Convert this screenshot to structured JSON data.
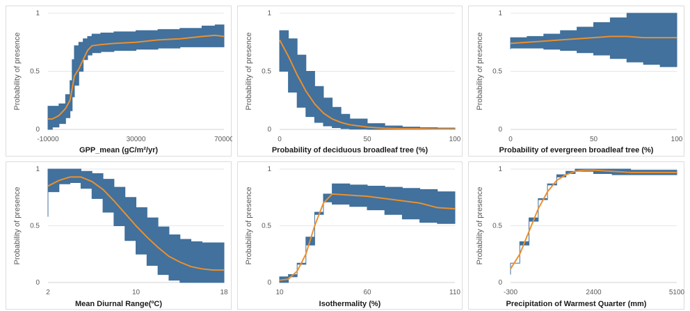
{
  "colors": {
    "band": "#41719c",
    "line": "#ed8f2d",
    "axis": "#d0d0d0",
    "grid": "#e6e6e6",
    "text": "#595959"
  },
  "y_axis_label": "Probability of presence",
  "chart_data": [
    {
      "type": "area",
      "title": "",
      "xlabel": "GPP_mean (gC/m²/yr)",
      "ylabel": "Probability of presence",
      "xlim": [
        -10000,
        70000
      ],
      "ylim": [
        0,
        1
      ],
      "x_ticks": [
        "-10000",
        "30000",
        "70000"
      ],
      "x_tick_values": [
        -10000,
        30000,
        70000
      ],
      "y_ticks": [
        "0",
        "0.5",
        "1"
      ],
      "x": [
        -10000,
        -8000,
        -5000,
        -2000,
        0,
        1000,
        2000,
        4000,
        6000,
        8000,
        10000,
        14000,
        20000,
        30000,
        40000,
        50000,
        60000,
        66000,
        70000
      ],
      "mean": [
        0.09,
        0.09,
        0.12,
        0.18,
        0.25,
        0.35,
        0.46,
        0.52,
        0.6,
        0.68,
        0.72,
        0.73,
        0.74,
        0.75,
        0.77,
        0.78,
        0.8,
        0.81,
        0.8
      ],
      "lower": [
        0,
        0,
        0.02,
        0.05,
        0.1,
        0.16,
        0.28,
        0.38,
        0.5,
        0.6,
        0.64,
        0.66,
        0.67,
        0.68,
        0.69,
        0.7,
        0.71,
        0.71,
        0.71
      ],
      "upper": [
        0.2,
        0.2,
        0.22,
        0.3,
        0.42,
        0.6,
        0.72,
        0.75,
        0.78,
        0.8,
        0.82,
        0.83,
        0.84,
        0.85,
        0.86,
        0.87,
        0.89,
        0.9,
        0.9
      ]
    },
    {
      "type": "area",
      "title": "",
      "xlabel": "Probability of deciduous broadleaf tree (%)",
      "ylabel": "Probability of presence",
      "xlim": [
        0,
        100
      ],
      "ylim": [
        0,
        1
      ],
      "x_ticks": [
        "0",
        "50",
        "100"
      ],
      "x_tick_values": [
        0,
        50,
        100
      ],
      "y_ticks": [
        "0",
        "0.5",
        "1"
      ],
      "x": [
        0,
        5,
        10,
        15,
        20,
        25,
        30,
        35,
        40,
        50,
        60,
        70,
        80,
        90,
        100
      ],
      "mean": [
        0.77,
        0.63,
        0.47,
        0.33,
        0.22,
        0.14,
        0.09,
        0.06,
        0.04,
        0.02,
        0.01,
        0.005,
        0.005,
        0.003,
        0.003
      ],
      "lower": [
        0.7,
        0.5,
        0.32,
        0.19,
        0.11,
        0.06,
        0.03,
        0.015,
        0.007,
        0.002,
        0.0,
        0.0,
        0.0,
        0.0,
        0.0
      ],
      "upper": [
        0.85,
        0.78,
        0.64,
        0.5,
        0.37,
        0.27,
        0.19,
        0.13,
        0.09,
        0.05,
        0.03,
        0.02,
        0.015,
        0.012,
        0.01
      ]
    },
    {
      "type": "area",
      "title": "",
      "xlabel": "Probability of evergreen broadleaf tree (%)",
      "ylabel": "Probability of presence",
      "xlim": [
        0,
        100
      ],
      "ylim": [
        0,
        1
      ],
      "x_ticks": [
        "0",
        "50",
        "100"
      ],
      "x_tick_values": [
        0,
        50,
        100
      ],
      "y_ticks": [
        "0",
        "0.5",
        "1"
      ],
      "x": [
        0,
        10,
        20,
        30,
        40,
        50,
        60,
        70,
        80,
        90,
        100
      ],
      "mean": [
        0.74,
        0.75,
        0.76,
        0.77,
        0.78,
        0.79,
        0.8,
        0.8,
        0.79,
        0.79,
        0.79
      ],
      "lower": [
        0.69,
        0.7,
        0.7,
        0.69,
        0.68,
        0.66,
        0.64,
        0.61,
        0.58,
        0.56,
        0.54
      ],
      "upper": [
        0.79,
        0.8,
        0.82,
        0.85,
        0.88,
        0.92,
        0.96,
        1.0,
        1.0,
        1.0,
        1.0
      ]
    },
    {
      "type": "area",
      "title": "",
      "xlabel": "Mean Diurnal Range(ºC)",
      "ylabel": "Probability of presence",
      "xlim": [
        2,
        18
      ],
      "ylim": [
        0,
        1
      ],
      "x_ticks": [
        "2",
        "10",
        "18"
      ],
      "x_tick_values": [
        2,
        10,
        18
      ],
      "y_ticks": [
        "0",
        "0.5",
        "1"
      ],
      "x": [
        2,
        3,
        4,
        5,
        6,
        7,
        8,
        9,
        10,
        11,
        12,
        13,
        14,
        15,
        16,
        17,
        18
      ],
      "mean": [
        0.85,
        0.9,
        0.93,
        0.93,
        0.89,
        0.82,
        0.72,
        0.61,
        0.5,
        0.4,
        0.31,
        0.23,
        0.18,
        0.14,
        0.12,
        0.11,
        0.11
      ],
      "lower": [
        0.58,
        0.8,
        0.87,
        0.88,
        0.83,
        0.74,
        0.62,
        0.5,
        0.37,
        0.25,
        0.15,
        0.07,
        0.02,
        0.0,
        0.0,
        0.0,
        0.0
      ],
      "upper": [
        1.0,
        1.0,
        1.0,
        0.98,
        0.96,
        0.91,
        0.84,
        0.75,
        0.66,
        0.57,
        0.49,
        0.42,
        0.38,
        0.36,
        0.35,
        0.35,
        0.35
      ]
    },
    {
      "type": "area",
      "title": "",
      "xlabel": "Isothermality (%)",
      "ylabel": "Probability of presence",
      "xlim": [
        10,
        110
      ],
      "ylim": [
        0,
        1
      ],
      "x_ticks": [
        "10",
        "60",
        "110"
      ],
      "x_tick_values": [
        10,
        60,
        110
      ],
      "y_ticks": [
        "0",
        "0.5",
        "1"
      ],
      "x": [
        10,
        15,
        20,
        25,
        30,
        35,
        40,
        50,
        60,
        70,
        80,
        90,
        100,
        110
      ],
      "mean": [
        0.02,
        0.03,
        0.1,
        0.25,
        0.5,
        0.7,
        0.78,
        0.77,
        0.76,
        0.74,
        0.72,
        0.7,
        0.66,
        0.65
      ],
      "lower": [
        0.0,
        0.0,
        0.05,
        0.17,
        0.4,
        0.62,
        0.71,
        0.69,
        0.67,
        0.64,
        0.6,
        0.56,
        0.53,
        0.52
      ],
      "upper": [
        0.05,
        0.07,
        0.16,
        0.33,
        0.6,
        0.78,
        0.87,
        0.86,
        0.85,
        0.84,
        0.83,
        0.82,
        0.8,
        0.8
      ]
    },
    {
      "type": "area",
      "title": "",
      "xlabel": "Precipitation of Warmest Quarter (mm)",
      "ylabel": "Probability of presence",
      "xlim": [
        -300,
        5100
      ],
      "ylim": [
        0,
        1
      ],
      "x_ticks": [
        "-300",
        "2400",
        "5100"
      ],
      "x_tick_values": [
        -300,
        2400,
        5100
      ],
      "y_ticks": [
        "0",
        "0.5",
        "1"
      ],
      "x": [
        -300,
        0,
        300,
        600,
        900,
        1200,
        1500,
        1800,
        2100,
        2400,
        3000,
        3600,
        4200,
        4800,
        5100
      ],
      "mean": [
        0.12,
        0.25,
        0.45,
        0.65,
        0.8,
        0.9,
        0.95,
        0.98,
        0.99,
        0.99,
        0.98,
        0.97,
        0.97,
        0.97,
        0.97
      ],
      "lower": [
        0.07,
        0.17,
        0.36,
        0.57,
        0.74,
        0.86,
        0.93,
        0.96,
        0.98,
        0.98,
        0.96,
        0.95,
        0.95,
        0.95,
        0.95
      ],
      "upper": [
        0.17,
        0.33,
        0.54,
        0.73,
        0.87,
        0.95,
        0.98,
        1.0,
        1.0,
        1.0,
        1.0,
        0.99,
        0.99,
        0.99,
        0.99
      ]
    }
  ]
}
